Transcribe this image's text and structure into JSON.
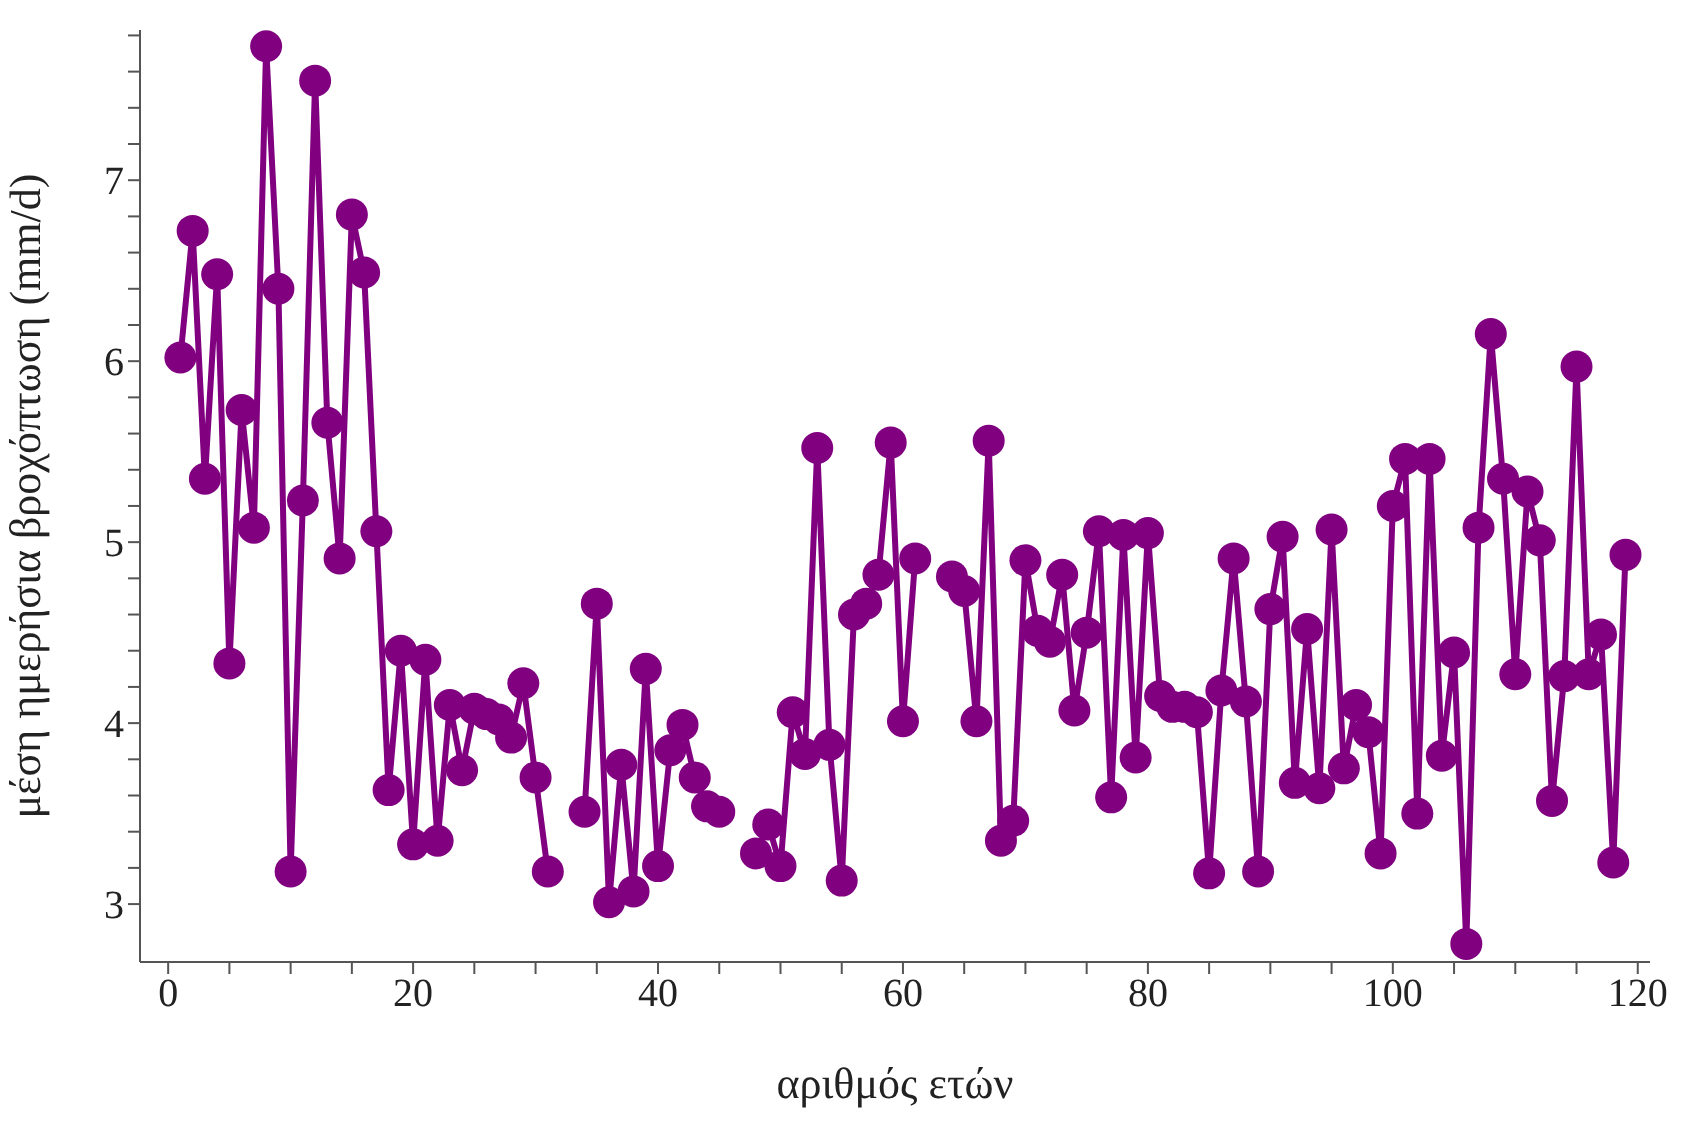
{
  "chart_data": {
    "type": "line",
    "xlabel": "αριθμός ετών",
    "ylabel": "μέση ημερήσια βροχόπτωση (mm/d)",
    "x": [
      1,
      2,
      3,
      4,
      5,
      6,
      7,
      8,
      9,
      10,
      11,
      12,
      13,
      14,
      15,
      16,
      17,
      18,
      19,
      20,
      21,
      22,
      23,
      24,
      25,
      26,
      27,
      28,
      29,
      30,
      31,
      32,
      33,
      34,
      35,
      36,
      37,
      38,
      39,
      40,
      41,
      42,
      43,
      44,
      45,
      46,
      47,
      48,
      49,
      50,
      51,
      52,
      53,
      54,
      55,
      56,
      57,
      58,
      59,
      60,
      61,
      62,
      63,
      64,
      65,
      66,
      67,
      68,
      69,
      70,
      71,
      72,
      73,
      74,
      75,
      76,
      77,
      78,
      79,
      80,
      81,
      82,
      83,
      84,
      85,
      86,
      87,
      88,
      89,
      90,
      91,
      92,
      93,
      94,
      95,
      96,
      97,
      98,
      99,
      100,
      101,
      102,
      103,
      104,
      105,
      106,
      107,
      108,
      109,
      110,
      111,
      112,
      113,
      114,
      115,
      116,
      117,
      118,
      119
    ],
    "series": [
      {
        "color": "#800080",
        "values": [
          6.02,
          6.72,
          5.35,
          6.48,
          4.33,
          5.73,
          5.08,
          7.74,
          6.4,
          3.18,
          5.23,
          7.55,
          5.66,
          4.91,
          6.81,
          6.49,
          5.06,
          3.63,
          4.4,
          3.33,
          4.35,
          3.35,
          4.1,
          3.74,
          4.08,
          4.05,
          4.02,
          3.92,
          4.22,
          3.7,
          3.18,
          null,
          null,
          3.51,
          4.66,
          3.01,
          3.77,
          3.07,
          4.3,
          3.21,
          3.85,
          3.99,
          3.7,
          3.54,
          3.51,
          null,
          null,
          3.28,
          3.44,
          3.21,
          4.06,
          3.83,
          5.52,
          3.88,
          3.13,
          4.6,
          4.66,
          4.82,
          5.55,
          4.01,
          4.91,
          null,
          null,
          4.81,
          4.73,
          4.01,
          5.56,
          3.35,
          3.46,
          4.9,
          4.51,
          4.45,
          4.82,
          4.07,
          4.5,
          5.06,
          3.59,
          5.04,
          3.81,
          5.05,
          4.15,
          4.09,
          4.09,
          4.06,
          3.17,
          4.18,
          4.91,
          4.12,
          3.18,
          4.63,
          5.03,
          3.67,
          4.52,
          3.64,
          5.07,
          3.75,
          4.1,
          3.95,
          3.28,
          5.2,
          5.46,
          3.5,
          5.46,
          3.82,
          4.39,
          2.78,
          5.08,
          6.15,
          5.35,
          4.27,
          5.28,
          5.01,
          3.57,
          4.26,
          5.97,
          4.27,
          4.49,
          3.23,
          4.93
        ]
      }
    ],
    "xlim": [
      -2.3,
      121
    ],
    "ylim": [
      2.68,
      7.83
    ],
    "xticks": [
      0,
      {
        "value": 5,
        "label": null
      },
      {
        "value": 10,
        "label": null
      },
      {
        "value": 15,
        "label": null
      },
      20,
      {
        "value": 25,
        "label": null
      },
      {
        "value": 30,
        "label": null
      },
      {
        "value": 35,
        "label": null
      },
      40,
      {
        "value": 45,
        "label": null
      },
      {
        "value": 50,
        "label": null
      },
      {
        "value": 55,
        "label": null
      },
      60,
      {
        "value": 65,
        "label": null
      },
      {
        "value": 70,
        "label": null
      },
      {
        "value": 75,
        "label": null
      },
      80,
      {
        "value": 85,
        "label": null
      },
      {
        "value": 90,
        "label": null
      },
      {
        "value": 95,
        "label": null
      },
      100,
      {
        "value": 105,
        "label": null
      },
      {
        "value": 110,
        "label": null
      },
      {
        "value": 115,
        "label": null
      },
      120
    ],
    "yticks": [
      3,
      {
        "value": 3.2,
        "label": null
      },
      {
        "value": 3.4,
        "label": null
      },
      {
        "value": 3.6,
        "label": null
      },
      {
        "value": 3.8,
        "label": null
      },
      4,
      {
        "value": 4.2,
        "label": null
      },
      {
        "value": 4.4,
        "label": null
      },
      {
        "value": 4.6,
        "label": null
      },
      {
        "value": 4.8,
        "label": null
      },
      5,
      {
        "value": 5.2,
        "label": null
      },
      {
        "value": 5.4,
        "label": null
      },
      {
        "value": 5.6,
        "label": null
      },
      {
        "value": 5.8,
        "label": null
      },
      6,
      {
        "value": 6.2,
        "label": null
      },
      {
        "value": 6.4,
        "label": null
      },
      {
        "value": 6.6,
        "label": null
      },
      {
        "value": 6.8,
        "label": null
      },
      7,
      {
        "value": 7.2,
        "label": null
      },
      {
        "value": 7.4,
        "label": null
      },
      {
        "value": 7.6,
        "label": null
      },
      {
        "value": 7.8,
        "label": null
      }
    ],
    "grid": false,
    "legend": false,
    "marker": "circle",
    "line_style": "solid"
  }
}
